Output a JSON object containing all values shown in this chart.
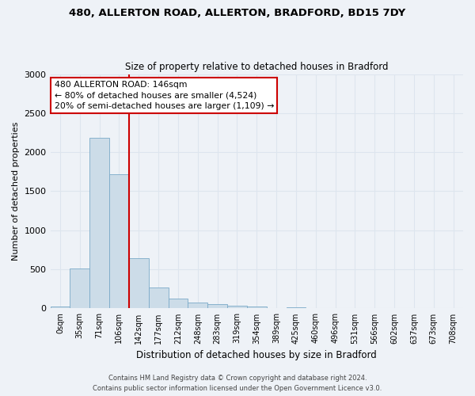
{
  "title1": "480, ALLERTON ROAD, ALLERTON, BRADFORD, BD15 7DY",
  "title2": "Size of property relative to detached houses in Bradford",
  "xlabel": "Distribution of detached houses by size in Bradford",
  "ylabel": "Number of detached properties",
  "bin_labels": [
    "0sqm",
    "35sqm",
    "71sqm",
    "106sqm",
    "142sqm",
    "177sqm",
    "212sqm",
    "248sqm",
    "283sqm",
    "319sqm",
    "354sqm",
    "389sqm",
    "425sqm",
    "460sqm",
    "496sqm",
    "531sqm",
    "566sqm",
    "602sqm",
    "637sqm",
    "673sqm",
    "708sqm"
  ],
  "bar_heights": [
    25,
    510,
    2180,
    1720,
    640,
    270,
    130,
    80,
    50,
    30,
    20,
    5,
    15,
    5,
    5,
    0,
    0,
    0,
    0,
    0,
    0
  ],
  "bar_color": "#ccdce8",
  "bar_edge_color": "#7aaac8",
  "annotation_title": "480 ALLERTON ROAD: 146sqm",
  "annotation_line1": "← 80% of detached houses are smaller (4,524)",
  "annotation_line2": "20% of semi-detached houses are larger (1,109) →",
  "annotation_box_facecolor": "#ffffff",
  "annotation_border_color": "#cc0000",
  "vline_color": "#cc0000",
  "ylim": [
    0,
    3000
  ],
  "yticks": [
    0,
    500,
    1000,
    1500,
    2000,
    2500,
    3000
  ],
  "footer1": "Contains HM Land Registry data © Crown copyright and database right 2024.",
  "footer2": "Contains public sector information licensed under the Open Government Licence v3.0.",
  "grid_color": "#dde5ee",
  "background_color": "#eef2f7",
  "fig_width": 6.0,
  "fig_height": 5.0,
  "dpi": 100
}
